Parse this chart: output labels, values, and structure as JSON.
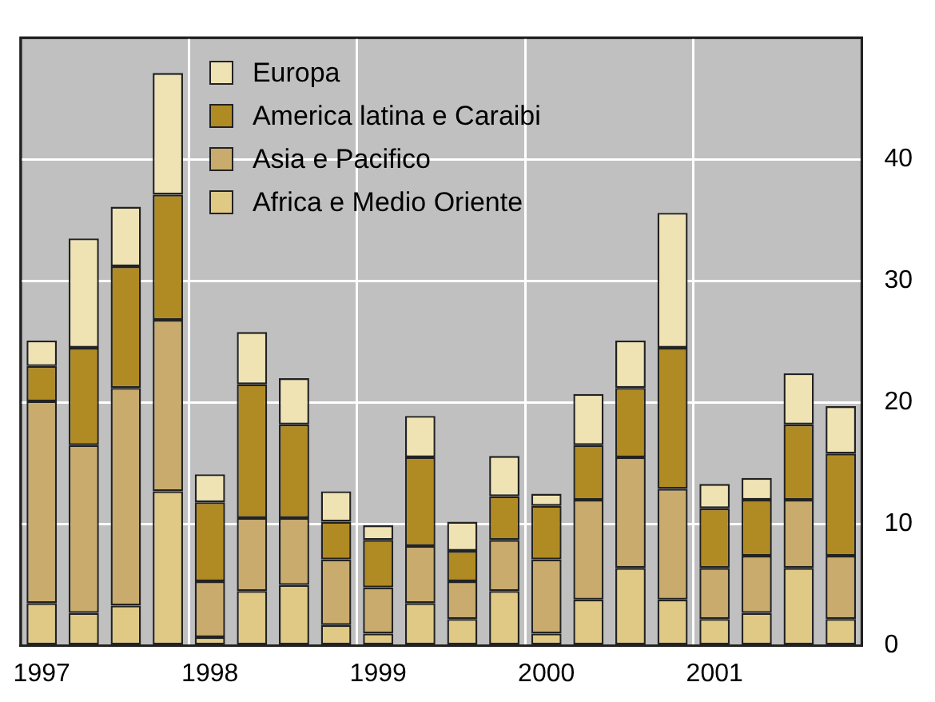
{
  "chart_data": {
    "type": "bar",
    "stacked": true,
    "categories": [
      "1997",
      null,
      null,
      null,
      "1998",
      null,
      null,
      null,
      "1999",
      null,
      null,
      null,
      "2000",
      null,
      null,
      null,
      "2001",
      null,
      null,
      null
    ],
    "series": [
      {
        "name": "Africa e Medio Oriente",
        "color": "#dfc985",
        "values": [
          3.5,
          2.7,
          3.3,
          12.7,
          0.7,
          4.5,
          5.0,
          1.7,
          1.0,
          3.5,
          2.2,
          4.5,
          1.0,
          3.8,
          6.4,
          3.8,
          2.2,
          2.7,
          6.4,
          2.2
        ]
      },
      {
        "name": "Asia e Pacifico",
        "color": "#c8ab6d",
        "values": [
          16.6,
          13.8,
          17.9,
          14.1,
          4.6,
          6.0,
          5.5,
          5.4,
          3.8,
          4.7,
          3.1,
          4.2,
          6.1,
          8.2,
          9.1,
          9.1,
          4.2,
          4.7,
          5.6,
          5.2
        ]
      },
      {
        "name": "America latina e Caraibi",
        "color": "#b08a23",
        "values": [
          2.9,
          8.0,
          10.0,
          10.3,
          6.5,
          11.0,
          7.7,
          3.1,
          3.9,
          7.3,
          2.5,
          3.6,
          4.4,
          4.5,
          5.7,
          11.6,
          4.9,
          4.6,
          6.2,
          8.4
        ]
      },
      {
        "name": "Europa",
        "color": "#efe3b4",
        "values": [
          2.1,
          9.0,
          4.9,
          10.0,
          2.3,
          4.3,
          3.8,
          2.5,
          1.2,
          3.4,
          2.4,
          3.3,
          1.0,
          4.2,
          3.9,
          11.1,
          2.0,
          1.8,
          4.2,
          3.9
        ]
      }
    ],
    "ylim": [
      0,
      50
    ],
    "yticks": [
      0,
      10,
      20,
      30,
      40
    ],
    "grid": true,
    "legend": "top left"
  }
}
